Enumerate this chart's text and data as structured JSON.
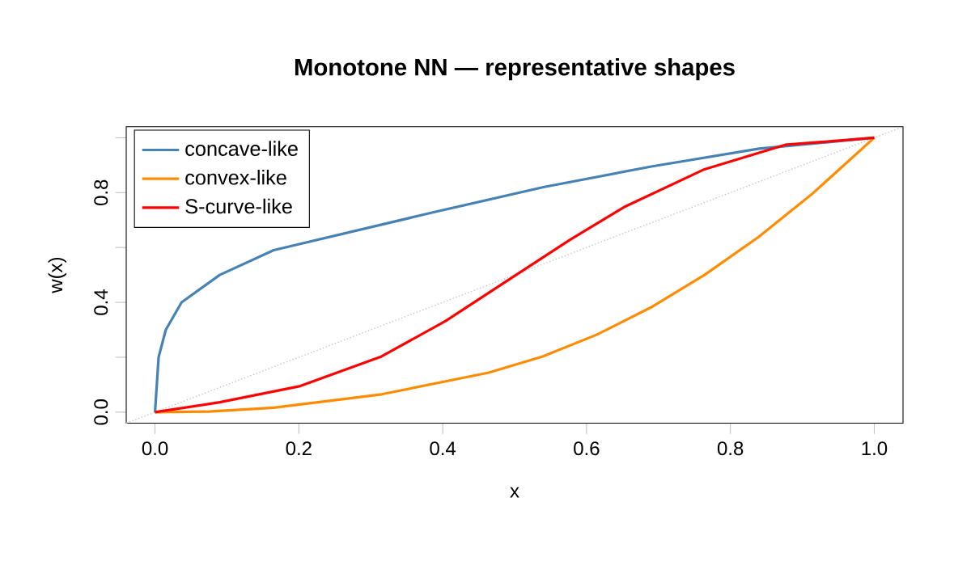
{
  "chart_data": {
    "type": "line",
    "title": "Monotone NN — representative shapes",
    "xlabel": "x",
    "ylabel": "w(x)",
    "xlim": [
      -0.04,
      1.04
    ],
    "ylim": [
      -0.04,
      1.04
    ],
    "xticks": [
      {
        "value": 0,
        "label": "0.0"
      },
      {
        "value": 0.2,
        "label": "0.2"
      },
      {
        "value": 0.4,
        "label": "0.4"
      },
      {
        "value": 0.6,
        "label": "0.6"
      },
      {
        "value": 0.8,
        "label": "0.8"
      },
      {
        "value": 1,
        "label": "1.0"
      }
    ],
    "yticks": [
      {
        "value": 0,
        "label": "0.0"
      },
      {
        "value": 0.2,
        "label": null
      },
      {
        "value": 0.4,
        "label": "0.4"
      },
      {
        "value": 0.6,
        "label": null
      },
      {
        "value": 0.8,
        "label": "0.8"
      },
      {
        "value": 1,
        "label": null
      }
    ],
    "legend": "top left",
    "series": [
      {
        "color": "#bebebe",
        "line_style": "dotted",
        "x": [
          -0.04,
          1.04
        ],
        "values": [
          -0.04,
          1.04
        ]
      },
      {
        "name": "concave-like",
        "color": "#4682b4",
        "x": [
          0,
          0.005,
          0.015,
          0.037,
          0.09,
          0.165,
          0.39,
          0.54,
          0.69,
          0.84,
          1
        ],
        "values": [
          0,
          0.2,
          0.3,
          0.4,
          0.5,
          0.59,
          0.73,
          0.82,
          0.895,
          0.96,
          1
        ]
      },
      {
        "name": "convex-like",
        "color": "#ff8c00",
        "x": [
          0,
          0.075,
          0.165,
          0.315,
          0.464,
          0.539,
          0.614,
          0.689,
          0.764,
          0.839,
          0.914,
          1
        ],
        "values": [
          0,
          0.002,
          0.016,
          0.065,
          0.144,
          0.203,
          0.282,
          0.381,
          0.5,
          0.638,
          0.796,
          1
        ]
      },
      {
        "name": "S-curve-like",
        "color": "#ff0000",
        "x": [
          0,
          0.09,
          0.202,
          0.315,
          0.404,
          0.502,
          0.577,
          0.652,
          0.764,
          0.876,
          1
        ],
        "values": [
          0,
          0.036,
          0.095,
          0.203,
          0.332,
          0.5,
          0.628,
          0.747,
          0.885,
          0.974,
          1
        ]
      }
    ]
  }
}
